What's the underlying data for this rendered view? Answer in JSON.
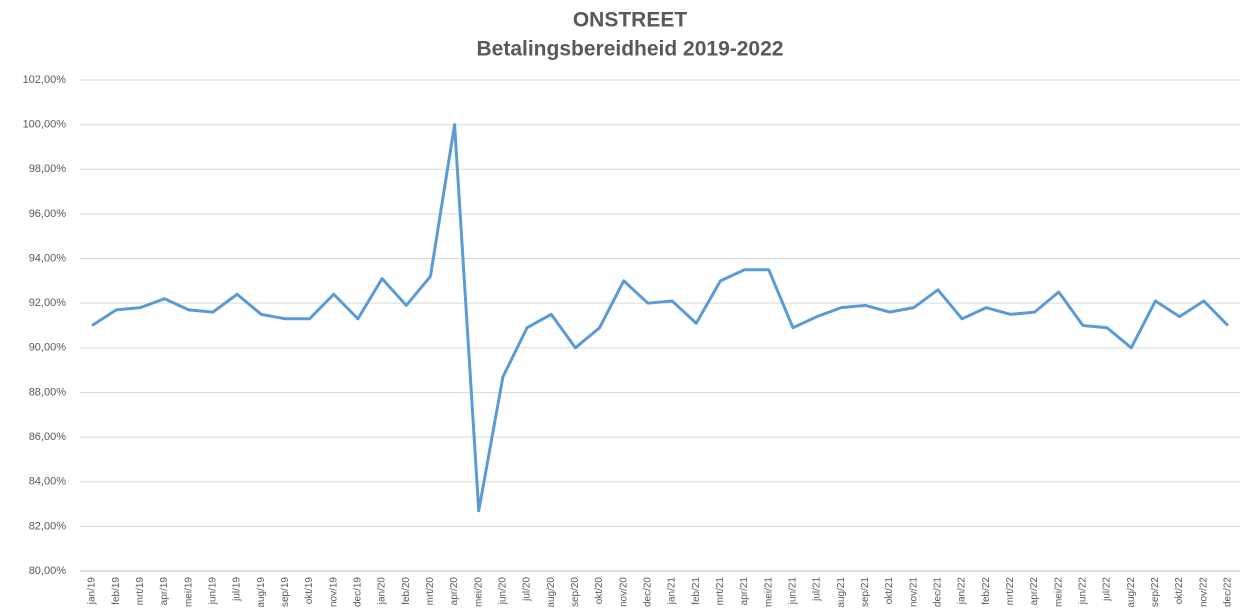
{
  "chart_data": {
    "type": "line",
    "title": "ONSTREET",
    "subtitle": "Betalingsbereidheid 2019-2022",
    "categories": [
      "jan/19",
      "feb/19",
      "mrt/19",
      "apr/19",
      "mei/19",
      "jun/19",
      "jul/19",
      "aug/19",
      "sep/19",
      "okt/19",
      "nov/19",
      "dec/19",
      "jan/20",
      "feb/20",
      "mrt/20",
      "apr/20",
      "mei/20",
      "jun/20",
      "jul/20",
      "aug/20",
      "sep/20",
      "okt/20",
      "nov/20",
      "dec/20",
      "jan/21",
      "feb/21",
      "mrt/21",
      "apr/21",
      "mei/21",
      "jun/21",
      "jul/21",
      "aug/21",
      "sep/21",
      "okt/21",
      "nov/21",
      "dec/21",
      "jan/22",
      "feb/22",
      "mrt/22",
      "apr/22",
      "mei/22",
      "jun/22",
      "jul/22",
      "aug/22",
      "sep/22",
      "okt/22",
      "nov/22",
      "dec/22"
    ],
    "series": [
      {
        "name": "Betalingsbereidheid",
        "color": "#5b9bd5",
        "values": [
          91.0,
          91.7,
          91.8,
          92.2,
          91.7,
          91.6,
          92.4,
          91.5,
          91.3,
          91.3,
          92.4,
          91.3,
          93.1,
          91.9,
          93.2,
          100.0,
          82.7,
          88.7,
          90.9,
          91.5,
          90.0,
          90.9,
          93.0,
          92.0,
          92.1,
          91.1,
          93.0,
          93.5,
          93.5,
          90.9,
          91.4,
          91.8,
          91.9,
          91.6,
          91.8,
          92.6,
          91.3,
          91.8,
          91.5,
          91.6,
          92.5,
          91.0,
          90.9,
          90.0,
          92.1,
          91.4,
          92.1,
          91.0
        ]
      }
    ],
    "ylim": [
      80,
      102
    ],
    "yticks": [
      {
        "value": 80,
        "label": "80,00%"
      },
      {
        "value": 82,
        "label": "82,00%"
      },
      {
        "value": 84,
        "label": "84,00%"
      },
      {
        "value": 86,
        "label": "86,00%"
      },
      {
        "value": 88,
        "label": "88,00%"
      },
      {
        "value": 90,
        "label": "90,00%"
      },
      {
        "value": 92,
        "label": "92,00%"
      },
      {
        "value": 94,
        "label": "94,00%"
      },
      {
        "value": 96,
        "label": "96,00%"
      },
      {
        "value": 98,
        "label": "98,00%"
      },
      {
        "value": 100,
        "label": "100,00%"
      },
      {
        "value": 102,
        "label": "102,00%"
      }
    ],
    "grid": true
  }
}
